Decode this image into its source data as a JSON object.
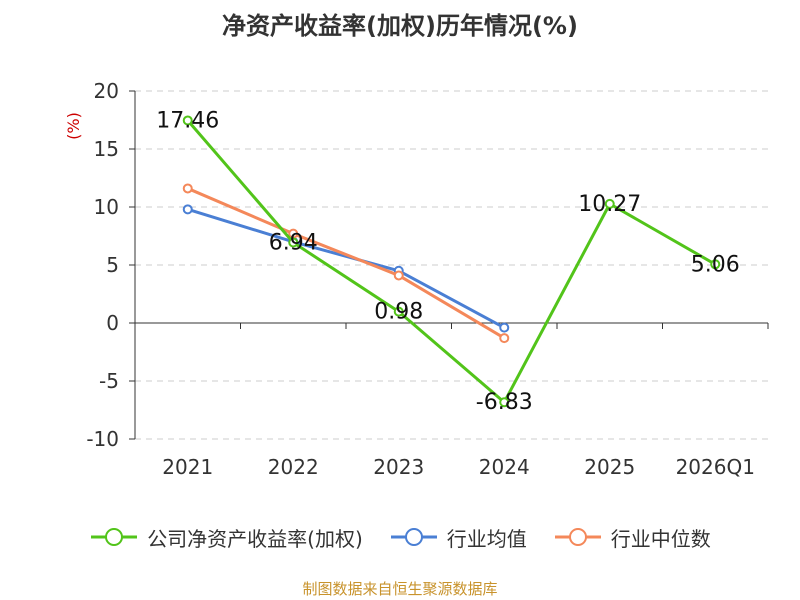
{
  "title": "净资产收益率(加权)历年情况(%)",
  "footer": "制图数据来自恒生聚源数据库",
  "colors": {
    "company": "#52c41a",
    "industry_avg": "#4a7fd4",
    "industry_median": "#f4885a",
    "unit": "#cc0000",
    "footer": "#c8932c",
    "grid": "#cccccc",
    "axis": "#333333"
  },
  "chart_data": {
    "type": "line",
    "title": "净资产收益率(加权)历年情况(%)",
    "ylabel": "(%)",
    "xlabel": "",
    "categories": [
      "2021",
      "2022",
      "2023",
      "2024",
      "2025",
      "2026Q1"
    ],
    "ylim": [
      -10,
      20
    ],
    "yticks": [
      -10,
      -5,
      0,
      5,
      10,
      15,
      20
    ],
    "grid": true,
    "legend_position": "bottom",
    "series": [
      {
        "name": "公司净资产收益率(加权)",
        "key": "company",
        "values": [
          17.46,
          6.94,
          0.98,
          -6.83,
          10.27,
          5.06
        ],
        "show_labels": true
      },
      {
        "name": "行业均值",
        "key": "industry_avg",
        "values": [
          9.8,
          7.0,
          4.5,
          -0.4,
          null,
          null
        ],
        "show_labels": false
      },
      {
        "name": "行业中位数",
        "key": "industry_median",
        "values": [
          11.6,
          7.7,
          4.1,
          -1.3,
          null,
          null
        ],
        "show_labels": false
      }
    ],
    "data_labels": [
      "17.46",
      "6.94",
      "0.98",
      "-6.83",
      "10.27",
      "5.06"
    ]
  }
}
